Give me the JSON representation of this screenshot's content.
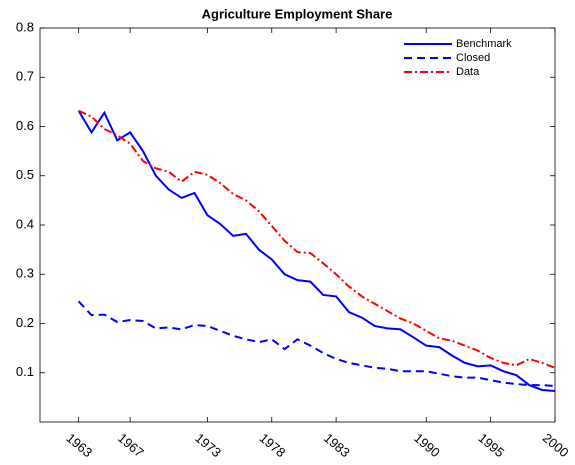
{
  "chart_data": {
    "type": "line",
    "title": "Agriculture Employment Share",
    "x": [
      1963,
      1964,
      1965,
      1966,
      1967,
      1968,
      1969,
      1970,
      1971,
      1972,
      1973,
      1974,
      1975,
      1976,
      1977,
      1978,
      1979,
      1980,
      1981,
      1982,
      1983,
      1984,
      1985,
      1986,
      1987,
      1988,
      1989,
      1990,
      1991,
      1992,
      1993,
      1994,
      1995,
      1996,
      1997,
      1998,
      1999,
      2000
    ],
    "series": [
      {
        "name": "Benchmark",
        "color": "#0000ff",
        "line_style": "solid",
        "values": [
          0.632,
          0.588,
          0.628,
          0.572,
          0.588,
          0.55,
          0.5,
          0.472,
          0.455,
          0.465,
          0.42,
          0.402,
          0.378,
          0.382,
          0.35,
          0.33,
          0.3,
          0.288,
          0.285,
          0.258,
          0.255,
          0.223,
          0.212,
          0.195,
          0.19,
          0.188,
          0.172,
          0.155,
          0.152,
          0.135,
          0.12,
          0.113,
          0.115,
          0.103,
          0.095,
          0.075,
          0.065,
          0.063
        ]
      },
      {
        "name": "Closed",
        "color": "#0000ff",
        "line_style": "dashed",
        "values": [
          0.245,
          0.217,
          0.218,
          0.203,
          0.207,
          0.205,
          0.19,
          0.192,
          0.188,
          0.197,
          0.195,
          0.185,
          0.175,
          0.168,
          0.162,
          0.168,
          0.148,
          0.168,
          0.155,
          0.14,
          0.128,
          0.12,
          0.115,
          0.11,
          0.108,
          0.103,
          0.103,
          0.103,
          0.098,
          0.093,
          0.09,
          0.09,
          0.085,
          0.08,
          0.077,
          0.075,
          0.075,
          0.073
        ]
      },
      {
        "name": "Data",
        "color": "#ff0000",
        "line_style": "dashdot",
        "values": [
          0.632,
          0.62,
          0.595,
          0.582,
          0.565,
          0.53,
          0.515,
          0.508,
          0.488,
          0.508,
          0.502,
          0.485,
          0.463,
          0.45,
          0.428,
          0.398,
          0.368,
          0.345,
          0.343,
          0.322,
          0.3,
          0.275,
          0.255,
          0.24,
          0.225,
          0.21,
          0.2,
          0.185,
          0.17,
          0.165,
          0.155,
          0.145,
          0.13,
          0.12,
          0.115,
          0.128,
          0.12,
          0.11
        ]
      }
    ],
    "xlim": [
      1960,
      2000
    ],
    "xticks": [
      1963,
      1967,
      1973,
      1978,
      1983,
      1990,
      1995,
      2000
    ],
    "ylim": [
      0,
      0.8
    ],
    "yticks": [
      0.1,
      0.2,
      0.3,
      0.4,
      0.5,
      0.6,
      0.7,
      0.8
    ],
    "legend": "upper right"
  }
}
